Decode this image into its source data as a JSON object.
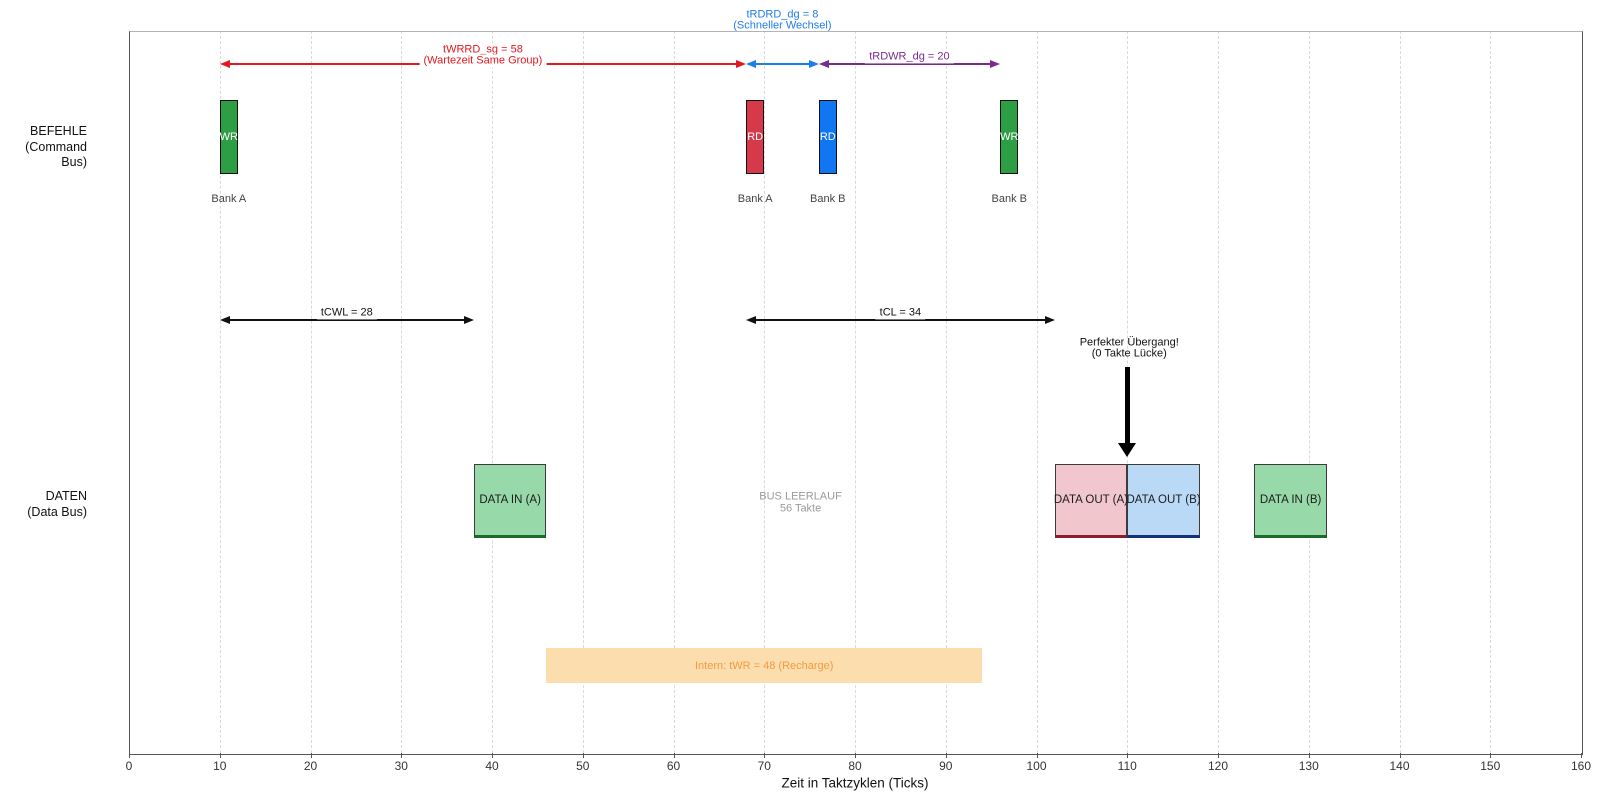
{
  "axis": {
    "xlabel": "Zeit in Taktzyklen (Ticks)"
  },
  "row_labels": {
    "befehle_line1": "BEFEHLE",
    "befehle_line2": "(Command Bus)",
    "daten_line1": "DATEN",
    "daten_line2": "(Data Bus)"
  },
  "chart_data": {
    "type": "timing-diagram",
    "xlabel": "Zeit in Taktzyklen (Ticks)",
    "xlim": [
      0,
      160
    ],
    "xticks": [
      0,
      10,
      20,
      30,
      40,
      50,
      60,
      70,
      80,
      90,
      100,
      110,
      120,
      130,
      140,
      150,
      160
    ],
    "grid": "vertical-dashed",
    "rows": [
      {
        "id": "command_bus",
        "label_line1": "BEFEHLE",
        "label_line2": "(Command Bus)"
      },
      {
        "id": "data_bus",
        "label_line1": "DATEN",
        "label_line2": "(Data Bus)"
      }
    ],
    "commands": [
      {
        "label": "WR",
        "bank": "Bank A",
        "start": 10,
        "end": 12,
        "color": "#2e9e44"
      },
      {
        "label": "RD",
        "bank": "Bank A",
        "start": 68,
        "end": 70,
        "color": "#d6394a"
      },
      {
        "label": "RD",
        "bank": "Bank B",
        "start": 76,
        "end": 78,
        "color": "#1176f2"
      },
      {
        "label": "WR",
        "bank": "Bank B",
        "start": 96,
        "end": 98,
        "color": "#2e9e44"
      }
    ],
    "data_blocks": [
      {
        "label": "DATA IN (A)",
        "start": 38,
        "end": 46,
        "fill": "#97d9a9",
        "edge": "#1b6b2a"
      },
      {
        "label": "DATA OUT (A)",
        "start": 102,
        "end": 110,
        "fill": "#f1c6cd",
        "edge": "#8b1e2e"
      },
      {
        "label": "DATA OUT (B)",
        "start": 110,
        "end": 118,
        "fill": "#b9d9f7",
        "edge": "#15317d"
      },
      {
        "label": "DATA IN (B)",
        "start": 124,
        "end": 132,
        "fill": "#97d9a9",
        "edge": "#1b6b2a"
      }
    ],
    "timing_arrows": [
      {
        "label": "tWRRD_sg = 58",
        "sublabel": "(Wartezeit Same Group)",
        "start": 10,
        "end": 68,
        "color": "#e0181f",
        "row": "top",
        "label_position": "on_arrow"
      },
      {
        "label": "tRDRD_dg = 8",
        "sublabel": "(Schneller Wechsel)",
        "start": 68,
        "end": 76,
        "color": "#1f7ced",
        "row": "top",
        "label_position": "above_plot"
      },
      {
        "label": "tRDWR_dg = 20",
        "sublabel": "",
        "start": 76,
        "end": 96,
        "color": "#7b2b8f",
        "row": "top",
        "label_position": "on_arrow"
      },
      {
        "label": "tCWL = 28",
        "sublabel": "",
        "start": 10,
        "end": 38,
        "color": "#111111",
        "row": "mid",
        "label_position": "on_arrow"
      },
      {
        "label": "tCL = 34",
        "sublabel": "",
        "start": 68,
        "end": 102,
        "color": "#111111",
        "row": "mid",
        "label_position": "on_arrow"
      }
    ],
    "recharge_bar": {
      "label": "Intern: tWR = 48 (Recharge)",
      "start": 46,
      "end": 94,
      "fill": "#fcdeae",
      "text_color": "#f59a40"
    },
    "idle_note": {
      "line1": "BUS LEERLAUF",
      "line2": "56 Takte",
      "x": 74,
      "color": "#9a9a9a"
    },
    "transition_note": {
      "line1": "Perfekter Übergang!",
      "line2": "(0 Takte Lücke)",
      "x": 110,
      "arrow_color": "#000000"
    }
  }
}
